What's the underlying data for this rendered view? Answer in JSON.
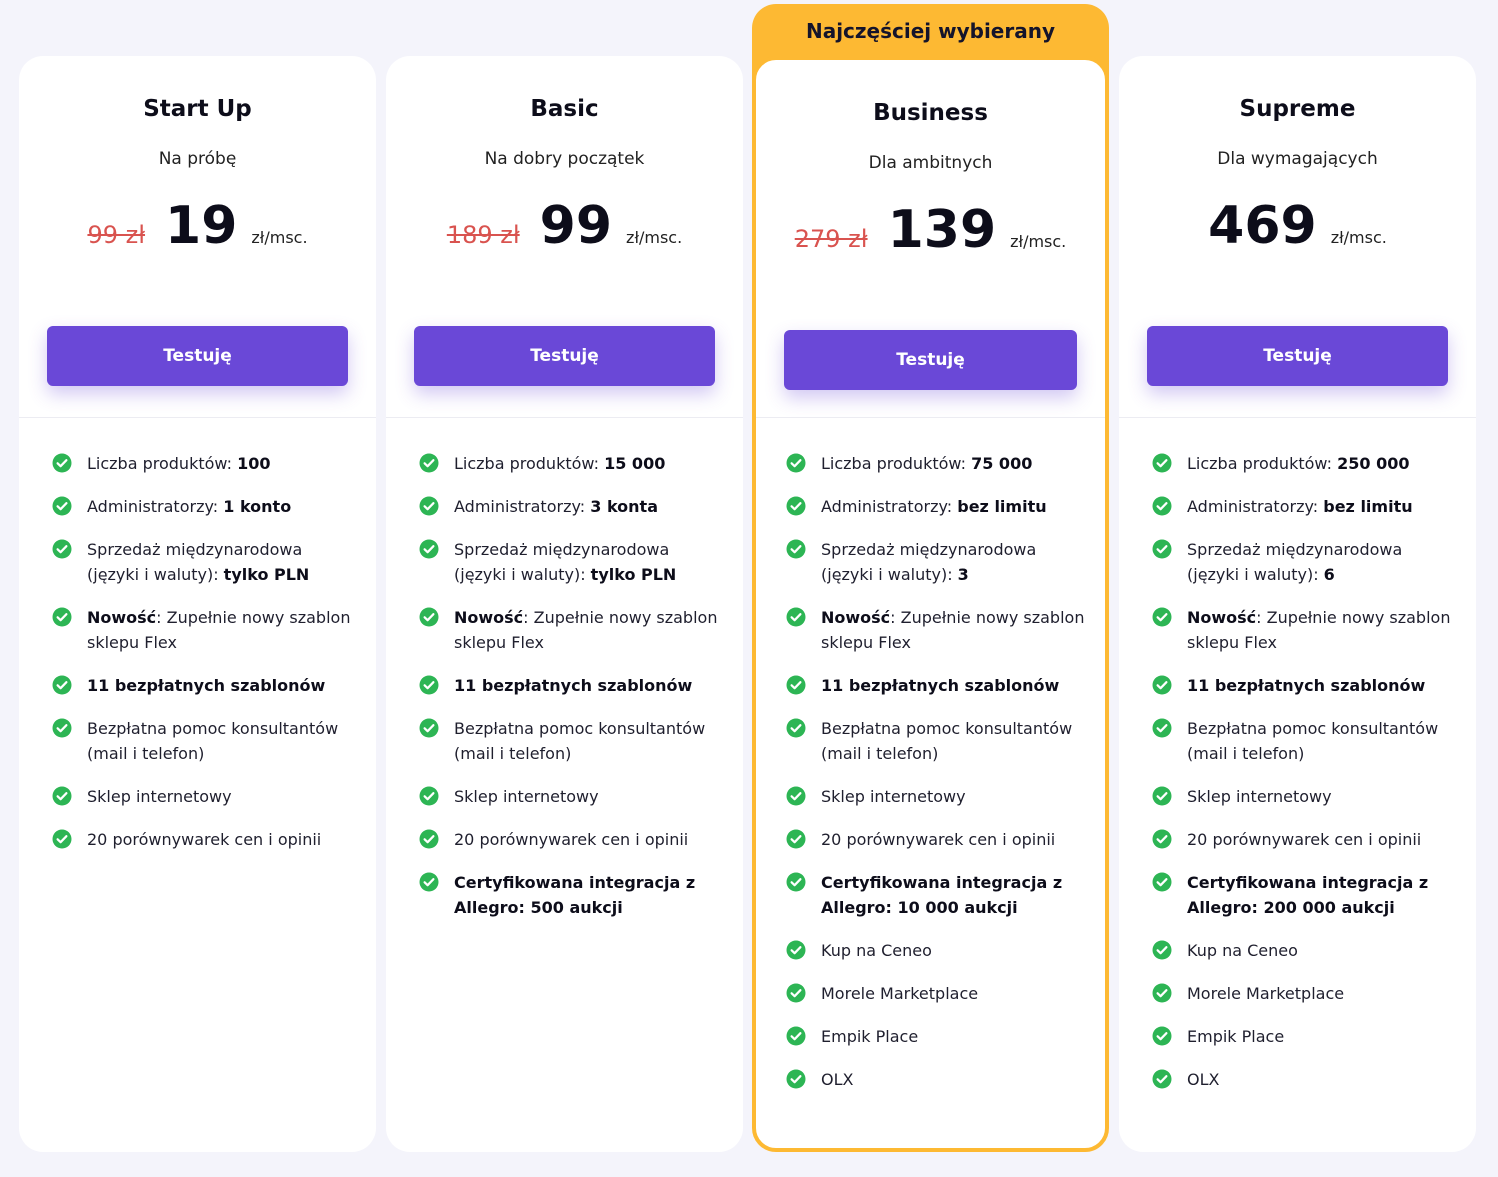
{
  "ribbon": {
    "label": "Najczęściej wybierany"
  },
  "colors": {
    "accent": "#6a48d7",
    "highlight": "#fdb933",
    "check": "#2db554",
    "old_price": "#d9534f"
  },
  "button_label": "Testuję",
  "plans": [
    {
      "name": "Start Up",
      "subtitle": "Na próbę",
      "old_price": "99 zł",
      "price": "19",
      "unit": "zł/msc.",
      "features": [
        {
          "pre": "Liczba produktów: ",
          "bold": "100",
          "post": ""
        },
        {
          "pre": "Administratorzy: ",
          "bold": "1 konto",
          "post": ""
        },
        {
          "pre": "Sprzedaż międzynarodowa (języki i waluty): ",
          "bold": "tylko PLN",
          "post": ""
        },
        {
          "pre": "",
          "bold": "Nowość",
          "post": ": Zupełnie nowy szablon sklepu Flex"
        },
        {
          "pre": "",
          "bold": "11 bezpłatnych szablonów",
          "post": ""
        },
        {
          "pre": "Bezpłatna pomoc konsultantów (mail i telefon)",
          "bold": "",
          "post": ""
        },
        {
          "pre": "Sklep internetowy",
          "bold": "",
          "post": ""
        },
        {
          "pre": "20 porównywarek cen i opinii",
          "bold": "",
          "post": ""
        }
      ]
    },
    {
      "name": "Basic",
      "subtitle": "Na dobry początek",
      "old_price": "189 zł",
      "price": "99",
      "unit": "zł/msc.",
      "features": [
        {
          "pre": "Liczba produktów: ",
          "bold": "15 000",
          "post": ""
        },
        {
          "pre": "Administratorzy: ",
          "bold": "3 konta",
          "post": ""
        },
        {
          "pre": "Sprzedaż międzynarodowa (języki i waluty): ",
          "bold": "tylko PLN",
          "post": ""
        },
        {
          "pre": "",
          "bold": "Nowość",
          "post": ": Zupełnie nowy szablon sklepu Flex"
        },
        {
          "pre": "",
          "bold": "11 bezpłatnych szablonów",
          "post": ""
        },
        {
          "pre": "Bezpłatna pomoc konsultantów (mail i telefon)",
          "bold": "",
          "post": ""
        },
        {
          "pre": "Sklep internetowy",
          "bold": "",
          "post": ""
        },
        {
          "pre": "20 porównywarek cen i opinii",
          "bold": "",
          "post": ""
        },
        {
          "pre": "",
          "bold": "Certyfikowana integracja z Allegro: 500 aukcji",
          "post": ""
        }
      ]
    },
    {
      "name": "Business",
      "subtitle": "Dla ambitnych",
      "old_price": "279 zł",
      "price": "139",
      "unit": "zł/msc.",
      "features": [
        {
          "pre": "Liczba produktów: ",
          "bold": "75 000",
          "post": ""
        },
        {
          "pre": "Administratorzy: ",
          "bold": "bez limitu",
          "post": ""
        },
        {
          "pre": "Sprzedaż międzynarodowa (języki i waluty): ",
          "bold": "3",
          "post": ""
        },
        {
          "pre": "",
          "bold": "Nowość",
          "post": ": Zupełnie nowy szablon sklepu Flex"
        },
        {
          "pre": "",
          "bold": "11 bezpłatnych szablonów",
          "post": ""
        },
        {
          "pre": "Bezpłatna pomoc konsultantów (mail i telefon)",
          "bold": "",
          "post": ""
        },
        {
          "pre": "Sklep internetowy",
          "bold": "",
          "post": ""
        },
        {
          "pre": "20 porównywarek cen i opinii",
          "bold": "",
          "post": ""
        },
        {
          "pre": "",
          "bold": "Certyfikowana integracja z Allegro: 10 000 aukcji",
          "post": ""
        },
        {
          "pre": "Kup na Ceneo",
          "bold": "",
          "post": ""
        },
        {
          "pre": "Morele Marketplace",
          "bold": "",
          "post": ""
        },
        {
          "pre": "Empik Place",
          "bold": "",
          "post": ""
        },
        {
          "pre": "OLX",
          "bold": "",
          "post": ""
        }
      ]
    },
    {
      "name": "Supreme",
      "subtitle": "Dla wymagających",
      "old_price": "",
      "price": "469",
      "unit": "zł/msc.",
      "features": [
        {
          "pre": "Liczba produktów: ",
          "bold": "250 000",
          "post": ""
        },
        {
          "pre": "Administratorzy: ",
          "bold": "bez limitu",
          "post": ""
        },
        {
          "pre": "Sprzedaż międzynarodowa (języki i waluty): ",
          "bold": "6",
          "post": ""
        },
        {
          "pre": "",
          "bold": "Nowość",
          "post": ": Zupełnie nowy szablon sklepu Flex"
        },
        {
          "pre": "",
          "bold": "11 bezpłatnych szablonów",
          "post": ""
        },
        {
          "pre": "Bezpłatna pomoc konsultantów (mail i telefon)",
          "bold": "",
          "post": ""
        },
        {
          "pre": "Sklep internetowy",
          "bold": "",
          "post": ""
        },
        {
          "pre": "20 porównywarek cen i opinii",
          "bold": "",
          "post": ""
        },
        {
          "pre": "",
          "bold": "Certyfikowana integracja z Allegro: 200 000 aukcji",
          "post": ""
        },
        {
          "pre": "Kup na Ceneo",
          "bold": "",
          "post": ""
        },
        {
          "pre": "Morele Marketplace",
          "bold": "",
          "post": ""
        },
        {
          "pre": "Empik Place",
          "bold": "",
          "post": ""
        },
        {
          "pre": "OLX",
          "bold": "",
          "post": ""
        }
      ]
    }
  ]
}
